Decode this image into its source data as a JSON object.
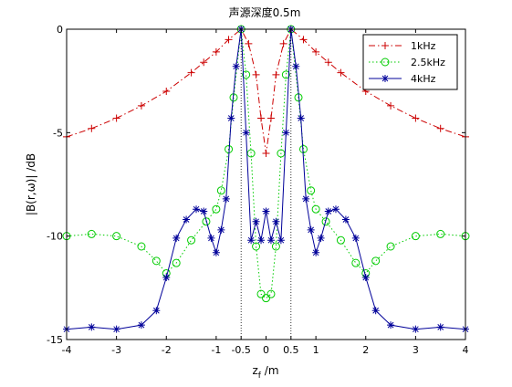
{
  "chart_data": {
    "type": "line",
    "title": "声源深度0.5m",
    "xlabel_base": "z",
    "xlabel_sub": "f",
    "xlabel_rest": " /m",
    "ylabel": "|B(r,ω)| /dB",
    "xlim": [
      -4,
      4
    ],
    "ylim": [
      -15,
      0
    ],
    "xticks": [
      -4,
      -3,
      -2,
      -1,
      -0.5,
      0,
      0.5,
      1,
      2,
      3,
      4
    ],
    "xtick_labels": [
      "-4",
      "-3",
      "-2",
      "-1",
      "-0.5",
      "0",
      "0.5",
      "1",
      "2",
      "3",
      "4"
    ],
    "yticks": [
      0,
      -5,
      -10,
      -15
    ],
    "ytick_labels": [
      "0",
      "-5",
      "-10",
      "-15"
    ],
    "grid": false,
    "legend_position": "top-right",
    "vlines": [
      -0.5,
      0.5
    ],
    "series": [
      {
        "name": "1kHz",
        "color": "#cc0000",
        "line": "dashdot",
        "marker": "plus",
        "x": [
          -4.0,
          -3.5,
          -3.0,
          -2.5,
          -2.0,
          -1.5,
          -1.25,
          -1.0,
          -0.75,
          -0.5,
          -0.35,
          -0.2,
          -0.1,
          0.0,
          0.1,
          0.2,
          0.35,
          0.5,
          0.75,
          1.0,
          1.25,
          1.5,
          2.0,
          2.5,
          3.0,
          3.5,
          4.0
        ],
        "y": [
          -5.2,
          -4.8,
          -4.3,
          -3.7,
          -3.0,
          -2.1,
          -1.6,
          -1.1,
          -0.5,
          0.0,
          -0.7,
          -2.2,
          -4.3,
          -6.0,
          -4.3,
          -2.2,
          -0.7,
          0.0,
          -0.5,
          -1.1,
          -1.6,
          -2.1,
          -3.0,
          -3.7,
          -4.3,
          -4.8,
          -5.2
        ]
      },
      {
        "name": "2.5kHz",
        "color": "#00cc00",
        "line": "dotted",
        "marker": "circle",
        "x": [
          -4.0,
          -3.5,
          -3.0,
          -2.5,
          -2.2,
          -2.0,
          -1.8,
          -1.5,
          -1.2,
          -1.0,
          -0.9,
          -0.75,
          -0.65,
          -0.5,
          -0.4,
          -0.3,
          -0.2,
          -0.1,
          0.0,
          0.1,
          0.2,
          0.3,
          0.4,
          0.5,
          0.65,
          0.75,
          0.9,
          1.0,
          1.2,
          1.5,
          1.8,
          2.0,
          2.2,
          2.5,
          3.0,
          3.5,
          4.0
        ],
        "y": [
          -10.0,
          -9.9,
          -10.0,
          -10.5,
          -11.2,
          -11.8,
          -11.3,
          -10.2,
          -9.3,
          -8.7,
          -7.8,
          -5.8,
          -3.3,
          0.0,
          -2.2,
          -6.0,
          -10.5,
          -12.8,
          -13.0,
          -12.8,
          -10.5,
          -6.0,
          -2.2,
          0.0,
          -3.3,
          -5.8,
          -7.8,
          -8.7,
          -9.3,
          -10.2,
          -11.3,
          -11.8,
          -11.2,
          -10.5,
          -10.0,
          -9.9,
          -10.0
        ]
      },
      {
        "name": "4kHz",
        "color": "#000099",
        "line": "solid",
        "marker": "star",
        "x": [
          -4.0,
          -3.5,
          -3.0,
          -2.5,
          -2.2,
          -2.0,
          -1.8,
          -1.6,
          -1.4,
          -1.25,
          -1.1,
          -1.0,
          -0.9,
          -0.8,
          -0.7,
          -0.6,
          -0.5,
          -0.4,
          -0.3,
          -0.2,
          -0.1,
          0.0,
          0.1,
          0.2,
          0.3,
          0.4,
          0.5,
          0.6,
          0.7,
          0.8,
          0.9,
          1.0,
          1.1,
          1.25,
          1.4,
          1.6,
          1.8,
          2.0,
          2.2,
          2.5,
          3.0,
          3.5,
          4.0
        ],
        "y": [
          -14.5,
          -14.4,
          -14.5,
          -14.3,
          -13.6,
          -12.0,
          -10.1,
          -9.2,
          -8.7,
          -8.8,
          -10.1,
          -10.8,
          -9.7,
          -8.2,
          -4.3,
          -1.8,
          0.0,
          -5.0,
          -10.2,
          -9.3,
          -10.2,
          -8.8,
          -10.2,
          -9.3,
          -10.2,
          -5.0,
          0.0,
          -1.8,
          -4.3,
          -8.2,
          -9.7,
          -10.8,
          -10.1,
          -8.8,
          -8.7,
          -9.2,
          -10.1,
          -12.0,
          -13.6,
          -14.3,
          -14.5,
          -14.4,
          -14.5
        ]
      }
    ]
  }
}
